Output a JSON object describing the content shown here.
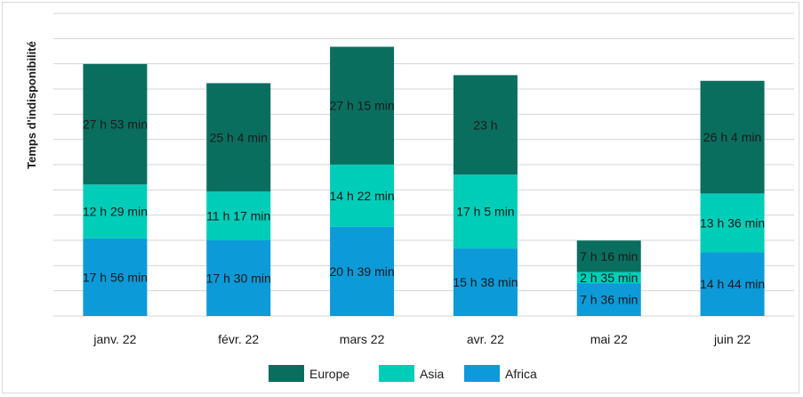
{
  "chart_data": {
    "type": "bar",
    "stacked": true,
    "ylabel": "Temps d'indisponibilité",
    "xlabel": "",
    "categories": [
      "janv. 22",
      "févr. 22",
      "mars 22",
      "avr. 22",
      "mai 22",
      "juin 22"
    ],
    "series": [
      {
        "name": "Africa",
        "color": "#0d9ad9",
        "values": [
          17.93,
          17.5,
          20.65,
          15.63,
          7.6,
          14.73
        ],
        "labels": [
          "17 h 56 min",
          "17 h 30 min",
          "20 h 39 min",
          "15 h 38 min",
          "7 h 36 min",
          "14 h 44 min"
        ]
      },
      {
        "name": "Asia",
        "color": "#00cdb8",
        "values": [
          12.48,
          11.28,
          14.37,
          17.08,
          2.58,
          13.6
        ],
        "labels": [
          "12 h 29 min",
          "11 h 17 min",
          "14 h 22 min",
          "17 h 5 min",
          "2 h 35 min",
          "13 h 36 min"
        ]
      },
      {
        "name": "Europe",
        "color": "#0a6e5f",
        "values": [
          27.88,
          25.07,
          27.25,
          23.0,
          7.27,
          26.07
        ],
        "labels": [
          "27 h 53 min",
          "25 h 4 min",
          "27 h 15 min",
          "23 h",
          "7 h 16 min",
          "26 h 4 min"
        ]
      }
    ],
    "ylim": [
      0,
      70
    ],
    "grid": true,
    "legend": "bottom"
  }
}
